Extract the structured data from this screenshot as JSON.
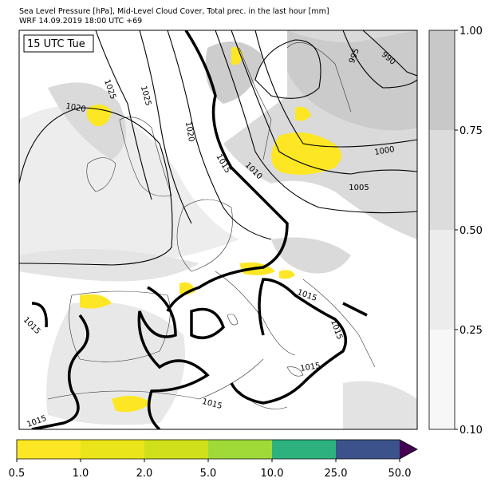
{
  "header": {
    "title_line_1": "Sea Level Pressure [hPa], Mid-Level Cloud Cover, Total prec. in the last hour [mm]",
    "title_line_2": "WRF 14.09.2019 18:00 UTC +69"
  },
  "map": {
    "time_label": "15 UTC Tue",
    "contour_labels": [
      "1020",
      "1025",
      "1025",
      "1020",
      "995",
      "990",
      "1000",
      "1005",
      "1010",
      "1015",
      "1015",
      "1015",
      "1015",
      "1015",
      "1015",
      "1015"
    ]
  },
  "cloud_colorbar": {
    "ticks": [
      "1.00",
      "0.75",
      "0.50",
      "0.25",
      "0.10"
    ]
  },
  "precip_colorbar": {
    "ticks": [
      "0.5",
      "1.0",
      "2.0",
      "5.0",
      "10.0",
      "25.0",
      "50.0"
    ]
  }
}
